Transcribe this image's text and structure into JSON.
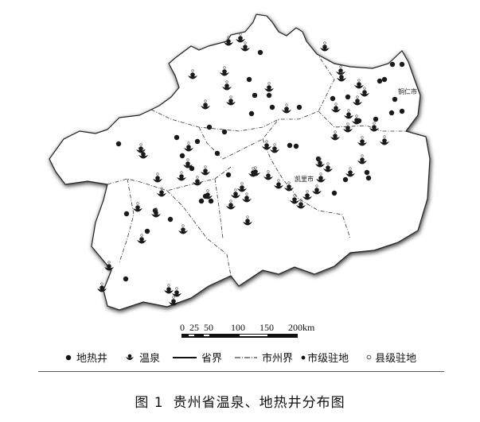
{
  "map": {
    "labels": {
      "tongren": "铜仁市",
      "kaili": "凯里市"
    },
    "colors": {
      "boundary": "#222222",
      "fill": "#ffffff",
      "shadow": "#777777",
      "marker": "#1a1a1a"
    }
  },
  "scale_bar": {
    "ticks": [
      "0",
      "25",
      "50",
      "100",
      "150",
      "200km"
    ]
  },
  "legend": {
    "items": [
      {
        "icon": "black-dot-icon",
        "label": "地热井"
      },
      {
        "icon": "hot-spring-icon",
        "label": "温泉"
      },
      {
        "icon": "solid-line-icon",
        "label": "省界"
      },
      {
        "icon": "dash-dot-line-icon",
        "label": "市州界"
      },
      {
        "icon": "filled-small-dot-icon",
        "label": "市级驻地"
      },
      {
        "icon": "hollow-circle-icon",
        "label": "县级驻地"
      }
    ]
  },
  "caption": {
    "number": "图 1",
    "title": "贵州省温泉、地热井分布图"
  }
}
